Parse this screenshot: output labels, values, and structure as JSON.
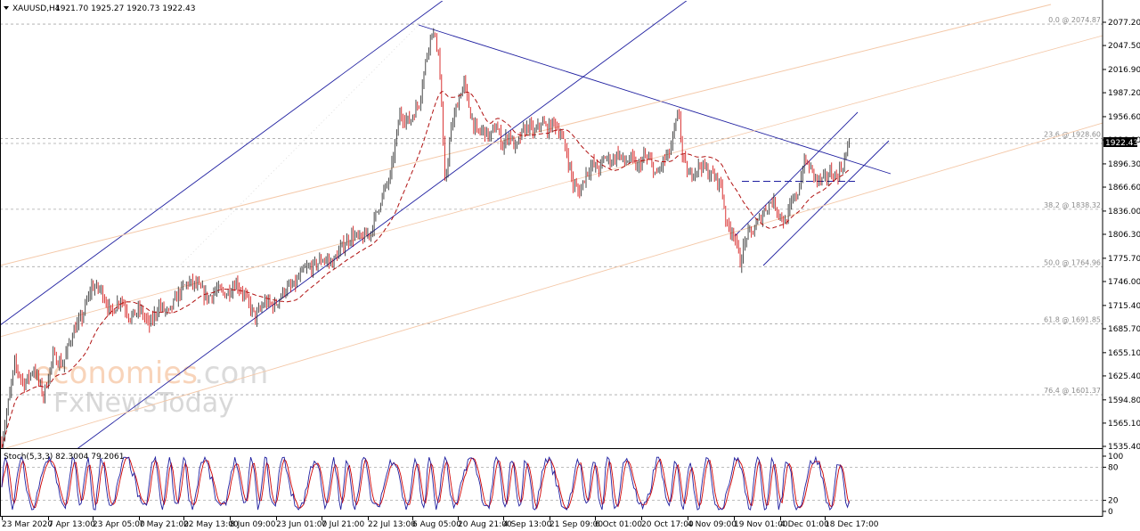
{
  "header": {
    "symbol_timeframe": "XAUUSD,H4",
    "ohlc": "1921.70 1925.27 1920.73 1922.43"
  },
  "watermark": {
    "line1a": "economies",
    "line1b": ".com",
    "line2": "FxNewsToday"
  },
  "colors": {
    "bull": "#1d1d1d",
    "bear": "#d00000",
    "channel": "#1f1fa0",
    "fib_line": "#f4c8a8",
    "grid": "#b0b0b0",
    "stoch_main": "#1f1fa0",
    "stoch_signal": "#d00000",
    "ma": "#b01010"
  },
  "chart_data": [
    {
      "type": "candlestick",
      "title": "XAUUSD,H4",
      "ylim": [
        1535.4,
        2105.0
      ],
      "y_ticks": [
        "2077.20",
        "2047.50",
        "2016.90",
        "1987.20",
        "1956.60",
        "1926.90",
        "1896.30",
        "1866.60",
        "1836.00",
        "1806.30",
        "1775.70",
        "1746.00",
        "1715.40",
        "1685.70",
        "1655.10",
        "1625.40",
        "1594.80",
        "1565.10",
        "1535.40"
      ],
      "x_tick_labels": [
        "23 Mar 2020",
        "7 Apr 13:00",
        "23 Apr 05:00",
        "7 May 21:00",
        "22 May 13:00",
        "8 Jun 09:00",
        "23 Jun 01:00",
        "7 Jul 21:00",
        "22 Jul 13:00",
        "6 Aug 05:00",
        "20 Aug 21:00",
        "4 Sep 13:00",
        "21 Sep 09:00",
        "6 Oct 01:00",
        "20 Oct 17:00",
        "4 Nov 09:00",
        "19 Nov 01:00",
        "4 Dec 01:00",
        "18 Dec 17:00"
      ],
      "last_price": "1922.43",
      "price_path": [
        [
          0,
          1540
        ],
        [
          4,
          1640
        ],
        [
          7,
          1615
        ],
        [
          10,
          1635
        ],
        [
          13,
          1600
        ],
        [
          16,
          1650
        ],
        [
          19,
          1640
        ],
        [
          22,
          1680
        ],
        [
          25,
          1700
        ],
        [
          28,
          1740
        ],
        [
          31,
          1735
        ],
        [
          34,
          1705
        ],
        [
          37,
          1725
        ],
        [
          40,
          1700
        ],
        [
          43,
          1710
        ],
        [
          46,
          1690
        ],
        [
          49,
          1715
        ],
        [
          52,
          1705
        ],
        [
          55,
          1730
        ],
        [
          58,
          1745
        ],
        [
          61,
          1740
        ],
        [
          64,
          1725
        ],
        [
          67,
          1735
        ],
        [
          70,
          1730
        ],
        [
          73,
          1745
        ],
        [
          76,
          1725
        ],
        [
          79,
          1700
        ],
        [
          82,
          1720
        ],
        [
          85,
          1715
        ],
        [
          88,
          1735
        ],
        [
          91,
          1740
        ],
        [
          94,
          1760
        ],
        [
          97,
          1765
        ],
        [
          100,
          1775
        ],
        [
          103,
          1770
        ],
        [
          106,
          1790
        ],
        [
          109,
          1805
        ],
        [
          112,
          1800
        ],
        [
          115,
          1810
        ],
        [
          118,
          1850
        ],
        [
          121,
          1880
        ],
        [
          124,
          1960
        ],
        [
          127,
          1950
        ],
        [
          130,
          1975
        ],
        [
          133,
          2050
        ],
        [
          134,
          2068
        ],
        [
          136,
          2040
        ],
        [
          137,
          1970
        ],
        [
          138,
          1870
        ],
        [
          140,
          1940
        ],
        [
          142,
          1975
        ],
        [
          144,
          2000
        ],
        [
          146,
          1960
        ],
        [
          148,
          1935
        ],
        [
          150,
          1940
        ],
        [
          152,
          1930
        ],
        [
          154,
          1945
        ],
        [
          156,
          1920
        ],
        [
          158,
          1935
        ],
        [
          160,
          1915
        ],
        [
          162,
          1935
        ],
        [
          164,
          1945
        ],
        [
          166,
          1935
        ],
        [
          168,
          1950
        ],
        [
          170,
          1940
        ],
        [
          172,
          1950
        ],
        [
          174,
          1935
        ],
        [
          176,
          1910
        ],
        [
          178,
          1870
        ],
        [
          180,
          1860
        ],
        [
          182,
          1885
        ],
        [
          184,
          1895
        ],
        [
          186,
          1890
        ],
        [
          188,
          1905
        ],
        [
          190,
          1900
        ],
        [
          192,
          1910
        ],
        [
          194,
          1898
        ],
        [
          196,
          1903
        ],
        [
          198,
          1890
        ],
        [
          200,
          1905
        ],
        [
          202,
          1900
        ],
        [
          204,
          1880
        ],
        [
          206,
          1900
        ],
        [
          208,
          1910
        ],
        [
          210,
          1948
        ],
        [
          211,
          1960
        ],
        [
          212,
          1905
        ],
        [
          214,
          1880
        ],
        [
          216,
          1890
        ],
        [
          218,
          1895
        ],
        [
          220,
          1885
        ],
        [
          222,
          1880
        ],
        [
          224,
          1870
        ],
        [
          226,
          1815
        ],
        [
          228,
          1810
        ],
        [
          230,
          1770
        ],
        [
          232,
          1805
        ],
        [
          234,
          1810
        ],
        [
          236,
          1825
        ],
        [
          238,
          1840
        ],
        [
          240,
          1850
        ],
        [
          242,
          1835
        ],
        [
          244,
          1820
        ],
        [
          246,
          1845
        ],
        [
          248,
          1860
        ],
        [
          250,
          1900
        ],
        [
          252,
          1890
        ],
        [
          254,
          1875
        ],
        [
          256,
          1875
        ],
        [
          258,
          1885
        ],
        [
          260,
          1880
        ],
        [
          262,
          1895
        ],
        [
          264,
          1922
        ]
      ],
      "moving_average": "dashed red moving average",
      "fibonacci_levels": [
        {
          "label": "0.0 @ 2074.87",
          "value": 2074.87
        },
        {
          "label": "23.6 @ 1928.60",
          "value": 1928.6
        },
        {
          "label": "38.2 @ 1838.32",
          "value": 1838.32
        },
        {
          "label": "50.0 @ 1764.96",
          "value": 1764.96
        },
        {
          "label": "61.8 @ 1691.85",
          "value": 1691.85
        },
        {
          "label": "76.4 @ 1601.37",
          "value": 1601.37
        }
      ],
      "horizontal_dashed_level": 1874.0,
      "grid": false
    },
    {
      "type": "line",
      "title": "Stoch(5,3,3) 82.3004 79.2061",
      "ylim": [
        0,
        100
      ],
      "y_ticks": [
        "100",
        "80",
        "20",
        "0"
      ],
      "levels": [
        80,
        20
      ]
    }
  ]
}
